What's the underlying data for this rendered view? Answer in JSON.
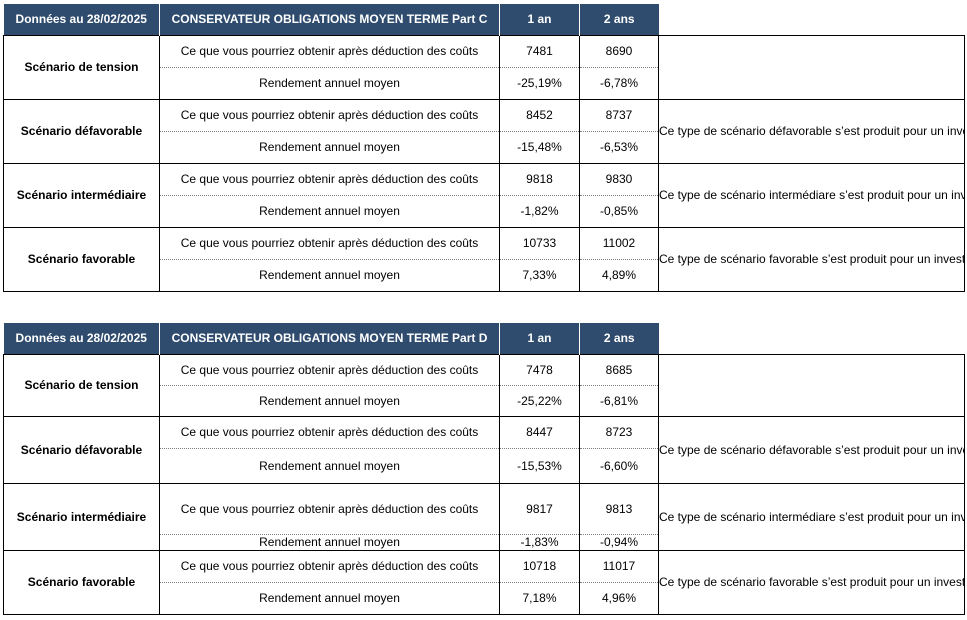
{
  "tables": [
    {
      "header": {
        "date": "Données au 28/02/2025",
        "fund": "CONSERVATEUR OBLIGATIONS MOYEN TERME Part C",
        "col1": "1 an",
        "col2": "2 ans"
      },
      "scenarios": [
        {
          "name": "Scénario de tension",
          "label1": "Ce que vous pourriez obtenir après déduction des coûts",
          "v1_1an": "7481",
          "v1_2ans": "8690",
          "label2": "Rendement annuel moyen",
          "v2_1an": "-25,19%",
          "v2_2ans": "-6,78%",
          "description": ""
        },
        {
          "name": "Scénario défavorable",
          "label1": "Ce que vous pourriez obtenir après déduction des coûts",
          "v1_1an": "8452",
          "v1_2ans": "8737",
          "label2": "Rendement annuel moyen",
          "v2_1an": "-15,48%",
          "v2_2ans": "-6,53%",
          "description": "Ce type de scénario défavorable s’est produit pour un investissement dans l’OPCVM entre 2020 et 2022."
        },
        {
          "name": "Scénario intermédiaire",
          "label1": "Ce que vous pourriez obtenir après déduction des coûts",
          "v1_1an": "9818",
          "v1_2ans": "9830",
          "label2": "Rendement annuel moyen",
          "v2_1an": "-1,82%",
          "v2_2ans": "-0,85%",
          "description": "Ce type de scénario intermédiare s’est produit pour un investissement dans l’OPCVM entre 2019 et 2021."
        },
        {
          "name": "Scénario favorable",
          "label1": "Ce que vous pourriez obtenir après déduction des coûts",
          "v1_1an": "10733",
          "v1_2ans": "11002",
          "label2": "Rendement annuel moyen",
          "v2_1an": "7,33%",
          "v2_2ans": "4,89%",
          "description": "Ce type de scénario favorable s’est produit pour un investissement dans l’OPCVM entre 2022 et 2024."
        }
      ]
    },
    {
      "header": {
        "date": "Données au 28/02/2025",
        "fund": "CONSERVATEUR OBLIGATIONS MOYEN TERME Part D",
        "col1": "1 an",
        "col2": "2 ans"
      },
      "scenarios": [
        {
          "name": "Scénario de tension",
          "label1": "Ce que vous pourriez obtenir après déduction des coûts",
          "v1_1an": "7478",
          "v1_2ans": "8685",
          "label2": "Rendement annuel moyen",
          "v2_1an": "-25,22%",
          "v2_2ans": "-6,81%",
          "description": ""
        },
        {
          "name": "Scénario défavorable",
          "label1": "Ce que vous pourriez obtenir après déduction des coûts",
          "v1_1an": "8447",
          "v1_2ans": "8723",
          "label2": "Rendement annuel moyen",
          "v2_1an": "-15,53%",
          "v2_2ans": "-6,60%",
          "description": "Ce type de scénario défavorable s’est produit pour un investissement dans l’OPCVM entre 2020 et 2022."
        },
        {
          "name": "Scénario intermédiaire",
          "label1": "Ce que vous pourriez obtenir après déduction des coûts",
          "v1_1an": "9817",
          "v1_2ans": "9813",
          "label2": "Rendement annuel moyen",
          "v2_1an": "-1,83%",
          "v2_2ans": "-0,94%",
          "description": "Ce type de scénario intermédiare s’est produit pour un investissement dans l’OPCVM entre 2019 et 2021."
        },
        {
          "name": "Scénario favorable",
          "label1": "Ce que vous pourriez obtenir après déduction des coûts",
          "v1_1an": "10718",
          "v1_2ans": "11017",
          "label2": "Rendement annuel moyen",
          "v2_1an": "7,18%",
          "v2_2ans": "4,96%",
          "description": "Ce type de scénario favorable s’est produit pour un investissement dans l’OPCVM entre 2022 et 2024."
        }
      ]
    }
  ]
}
